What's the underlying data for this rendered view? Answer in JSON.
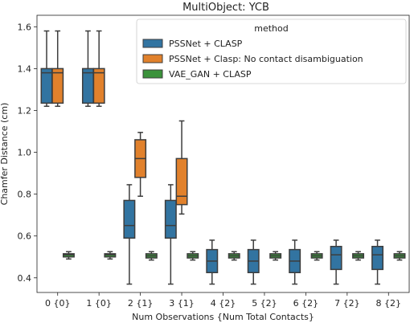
{
  "chart_data": {
    "type": "box",
    "title": "MultiObject: YCB",
    "xlabel": "Num Observations {Num Total Contacts}",
    "ylabel": "Chamfer Distance (cm)",
    "ylim": [
      0.33,
      1.655
    ],
    "yticks": [
      0.4,
      0.6,
      0.8,
      1.0,
      1.2,
      1.4,
      1.6
    ],
    "ytick_labels": [
      "0.4",
      "0.6",
      "0.8",
      "1.0",
      "1.2",
      "1.4",
      "1.6"
    ],
    "categories": [
      "0 {0}",
      "1 {0}",
      "2 {1}",
      "3 {1}",
      "4 {2}",
      "5 {2}",
      "6 {2}",
      "7 {2}",
      "8 {2}"
    ],
    "legend": {
      "title": "method",
      "placement": "upper-right"
    },
    "series": [
      {
        "name": "PSSNet + CLASP",
        "color": "#3274a1",
        "boxes": [
          {
            "whislo": 1.22,
            "q1": 1.235,
            "med": 1.38,
            "q3": 1.4,
            "whishi": 1.58
          },
          {
            "whislo": 1.22,
            "q1": 1.235,
            "med": 1.38,
            "q3": 1.4,
            "whishi": 1.58
          },
          {
            "whislo": 0.37,
            "q1": 0.59,
            "med": 0.65,
            "q3": 0.77,
            "whishi": 0.845
          },
          {
            "whislo": 0.37,
            "q1": 0.59,
            "med": 0.65,
            "q3": 0.77,
            "whishi": 0.845
          },
          {
            "whislo": 0.37,
            "q1": 0.425,
            "med": 0.48,
            "q3": 0.535,
            "whishi": 0.58
          },
          {
            "whislo": 0.37,
            "q1": 0.425,
            "med": 0.48,
            "q3": 0.535,
            "whishi": 0.58
          },
          {
            "whislo": 0.37,
            "q1": 0.425,
            "med": 0.48,
            "q3": 0.535,
            "whishi": 0.58
          },
          {
            "whislo": 0.37,
            "q1": 0.44,
            "med": 0.51,
            "q3": 0.55,
            "whishi": 0.58
          },
          {
            "whislo": 0.37,
            "q1": 0.44,
            "med": 0.51,
            "q3": 0.55,
            "whishi": 0.58
          }
        ]
      },
      {
        "name": "PSSNet + Clasp: No contact disambiguation",
        "color": "#e1812c",
        "boxes": [
          {
            "whislo": 1.22,
            "q1": 1.235,
            "med": 1.38,
            "q3": 1.4,
            "whishi": 1.58
          },
          {
            "whislo": 1.22,
            "q1": 1.235,
            "med": 1.38,
            "q3": 1.4,
            "whishi": 1.58
          },
          {
            "whislo": 0.79,
            "q1": 0.88,
            "med": 0.97,
            "q3": 1.06,
            "whishi": 1.095
          },
          {
            "whislo": 0.705,
            "q1": 0.75,
            "med": 0.79,
            "q3": 0.97,
            "whishi": 1.15
          },
          null,
          null,
          null,
          null,
          null
        ]
      },
      {
        "name": "VAE_GAN + CLASP",
        "color": "#3a923a",
        "boxes": [
          {
            "whislo": 0.49,
            "q1": 0.5,
            "med": 0.51,
            "q3": 0.515,
            "whishi": 0.525
          },
          {
            "whislo": 0.49,
            "q1": 0.5,
            "med": 0.51,
            "q3": 0.515,
            "whishi": 0.525
          },
          {
            "whislo": 0.485,
            "q1": 0.495,
            "med": 0.505,
            "q3": 0.515,
            "whishi": 0.525
          },
          {
            "whislo": 0.485,
            "q1": 0.495,
            "med": 0.505,
            "q3": 0.515,
            "whishi": 0.525
          },
          {
            "whislo": 0.485,
            "q1": 0.495,
            "med": 0.505,
            "q3": 0.515,
            "whishi": 0.525
          },
          {
            "whislo": 0.485,
            "q1": 0.495,
            "med": 0.505,
            "q3": 0.515,
            "whishi": 0.525
          },
          {
            "whislo": 0.485,
            "q1": 0.495,
            "med": 0.505,
            "q3": 0.515,
            "whishi": 0.525
          },
          {
            "whislo": 0.485,
            "q1": 0.495,
            "med": 0.505,
            "q3": 0.515,
            "whishi": 0.525
          },
          {
            "whislo": 0.485,
            "q1": 0.495,
            "med": 0.505,
            "q3": 0.515,
            "whishi": 0.525
          }
        ]
      }
    ]
  }
}
